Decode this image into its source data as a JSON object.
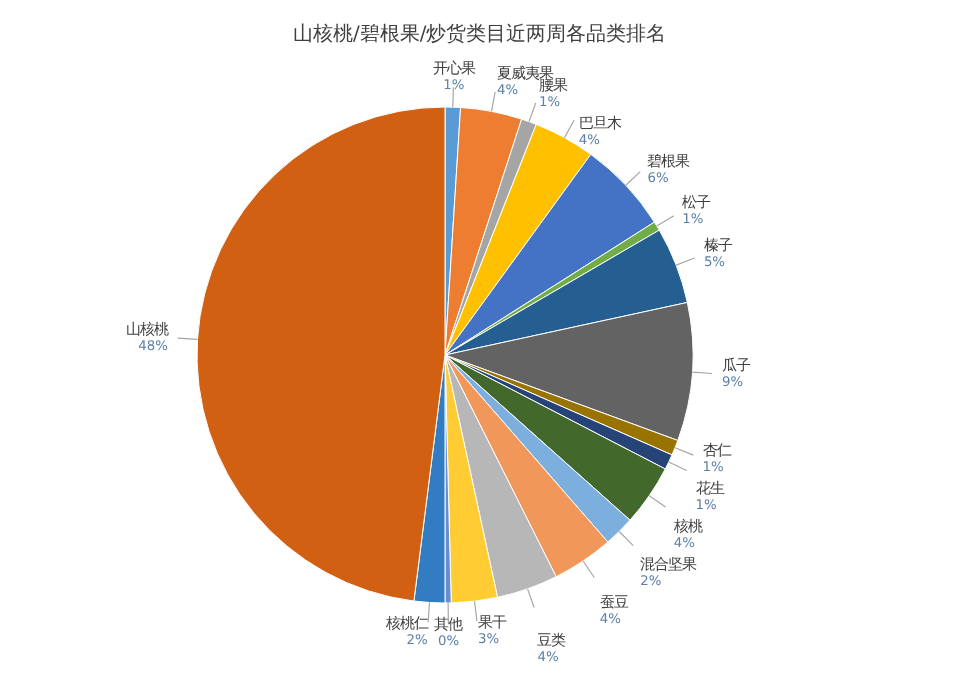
{
  "chart_data": {
    "type": "pie",
    "title": "山核桃/碧根果/炒货类目近两周各品类排名",
    "categories": [
      "开心果",
      "夏威夷果",
      "腰果",
      "巴旦木",
      "碧根果",
      "松子",
      "榛子",
      "瓜子",
      "杏仁",
      "花生",
      "核桃",
      "混合坚果",
      "蚕豆",
      "豆类",
      "果干",
      "其他",
      "核桃仁",
      "山核桃"
    ],
    "values": [
      1,
      4,
      1,
      4,
      6,
      0.6,
      5,
      9,
      1,
      1,
      4,
      2,
      4,
      4,
      3,
      0.4,
      2,
      48
    ],
    "value_labels": [
      "1%",
      "4%",
      "1%",
      "4%",
      "6%",
      "1%",
      "5%",
      "9%",
      "1%",
      "1%",
      "4%",
      "2%",
      "4%",
      "4%",
      "3%",
      "0%",
      "2%",
      "48%"
    ],
    "colors": [
      "#5b9bd5",
      "#ed7d31",
      "#a5a5a5",
      "#ffc000",
      "#4472c4",
      "#70ad47",
      "#255e91",
      "#636363",
      "#997300",
      "#264478",
      "#43682b",
      "#7cafdd",
      "#f1975a",
      "#b7b7b7",
      "#ffcd33",
      "#698ed0",
      "#327dc2",
      "#d26012"
    ]
  }
}
